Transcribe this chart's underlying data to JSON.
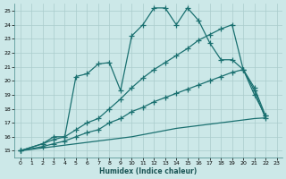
{
  "xlabel": "Humidex (Indice chaleur)",
  "bg_color": "#cce8e8",
  "grid_color": "#aacccc",
  "line_color": "#1a7070",
  "xlim": [
    -0.5,
    23.5
  ],
  "ylim": [
    14.5,
    25.5
  ],
  "yticks": [
    15,
    16,
    17,
    18,
    19,
    20,
    21,
    22,
    23,
    24,
    25
  ],
  "xticks": [
    0,
    1,
    2,
    3,
    4,
    5,
    6,
    7,
    8,
    9,
    10,
    11,
    12,
    13,
    14,
    15,
    16,
    17,
    18,
    19,
    20,
    21,
    22,
    23
  ],
  "line1_x": [
    0,
    2,
    3,
    4,
    5,
    6,
    7,
    8,
    9,
    10,
    11,
    12,
    13,
    14,
    15,
    16,
    17,
    18,
    19,
    20,
    21,
    22
  ],
  "line1_y": [
    15.0,
    15.5,
    15.8,
    16.0,
    20.3,
    20.5,
    21.2,
    21.3,
    19.3,
    23.2,
    24.0,
    25.2,
    25.2,
    24.0,
    25.2,
    24.3,
    22.7,
    21.5,
    21.5,
    20.8,
    19.3,
    17.3
  ],
  "line2_x": [
    0,
    2,
    3,
    4,
    5,
    6,
    7,
    8,
    9,
    10,
    11,
    12,
    13,
    14,
    15,
    16,
    17,
    18,
    19,
    20,
    21,
    22
  ],
  "line2_y": [
    15.0,
    15.5,
    16.0,
    16.0,
    16.5,
    17.0,
    17.3,
    18.0,
    18.7,
    19.5,
    20.2,
    20.8,
    21.3,
    21.8,
    22.3,
    22.9,
    23.3,
    23.7,
    24.0,
    20.8,
    19.5,
    17.5
  ],
  "line3_x": [
    0,
    2,
    3,
    4,
    5,
    6,
    7,
    8,
    9,
    10,
    11,
    12,
    13,
    14,
    15,
    16,
    17,
    18,
    19,
    20,
    21,
    22
  ],
  "line3_y": [
    15.0,
    15.3,
    15.5,
    15.7,
    16.0,
    16.3,
    16.5,
    17.0,
    17.3,
    17.8,
    18.1,
    18.5,
    18.8,
    19.1,
    19.4,
    19.7,
    20.0,
    20.3,
    20.6,
    20.8,
    19.0,
    17.5
  ],
  "line4_x": [
    0,
    2,
    3,
    4,
    5,
    6,
    7,
    8,
    9,
    10,
    11,
    12,
    13,
    14,
    15,
    16,
    17,
    18,
    19,
    20,
    21,
    22
  ],
  "line4_y": [
    15.0,
    15.2,
    15.3,
    15.4,
    15.5,
    15.6,
    15.7,
    15.8,
    15.9,
    16.0,
    16.15,
    16.3,
    16.45,
    16.6,
    16.7,
    16.8,
    16.9,
    17.0,
    17.1,
    17.2,
    17.3,
    17.35
  ]
}
